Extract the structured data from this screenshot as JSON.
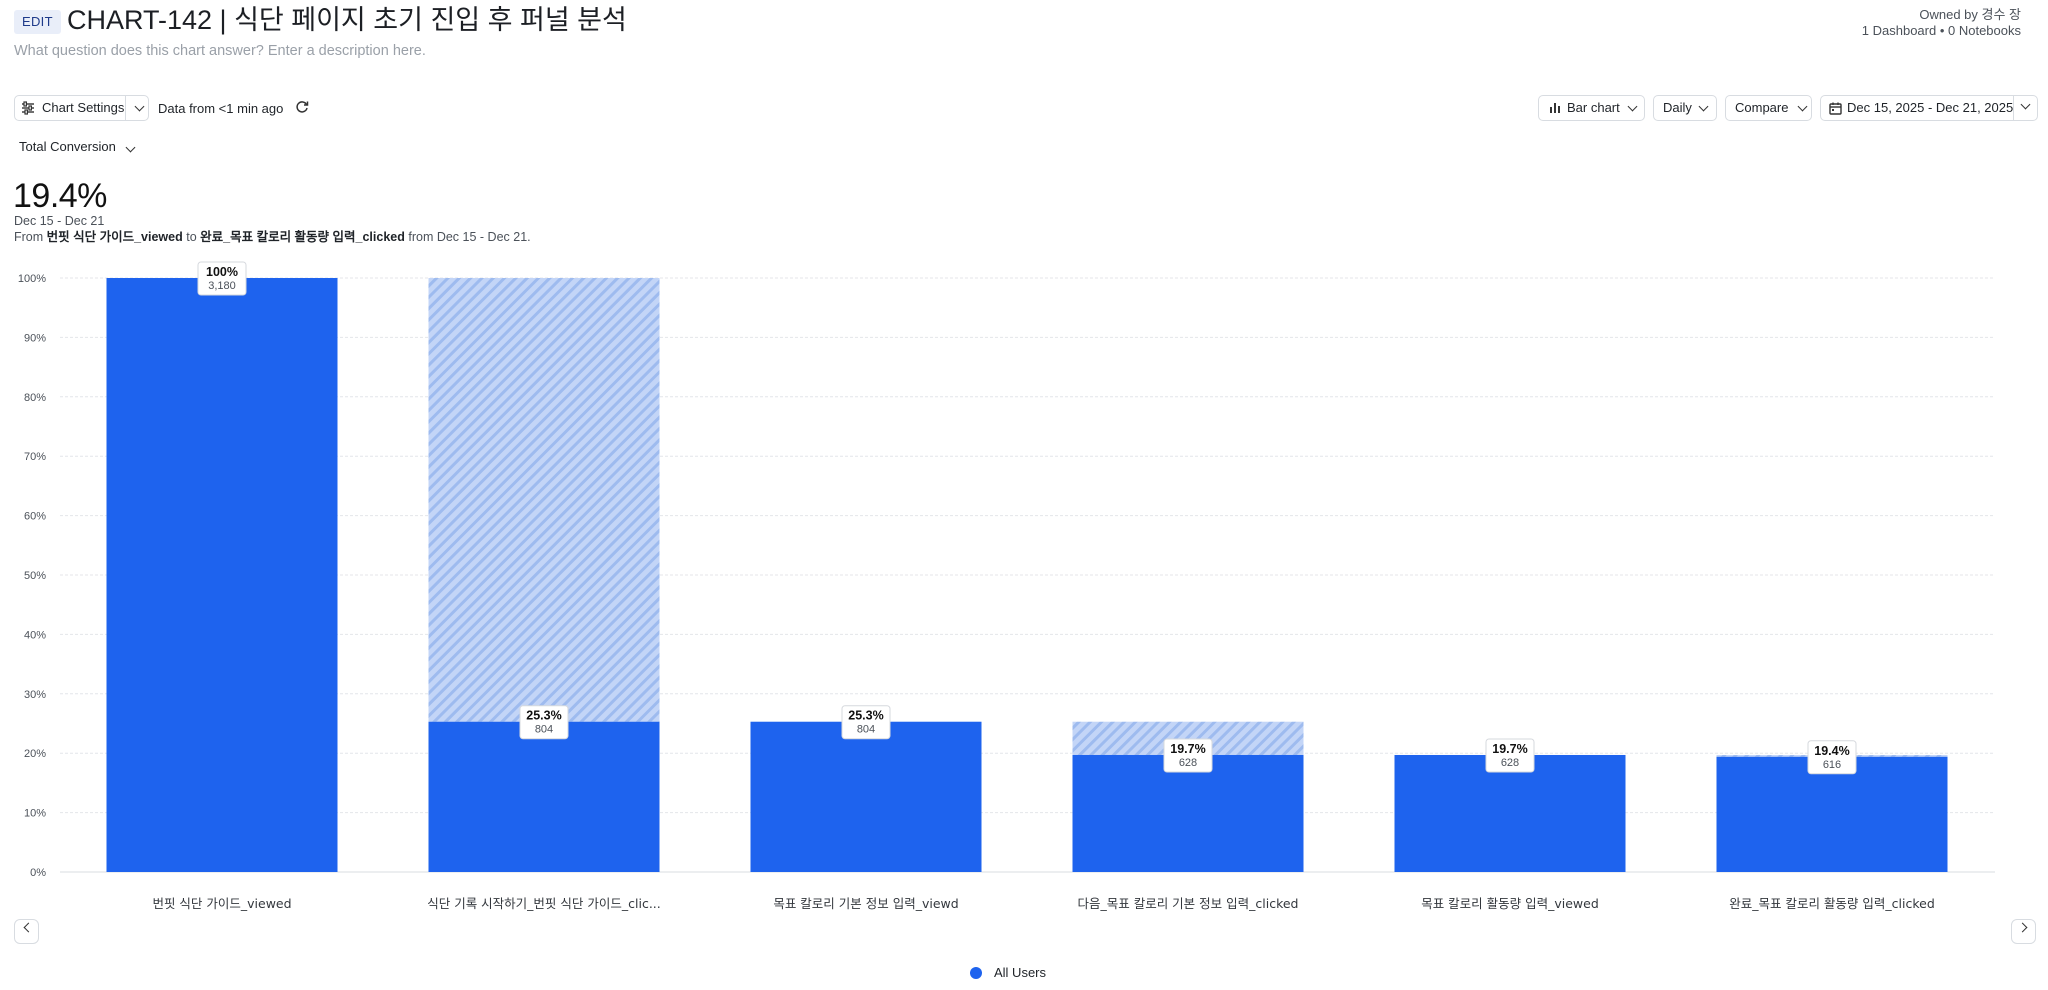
{
  "header": {
    "edit_badge": "EDIT",
    "title": "CHART-142 | 식단 페이지 초기 진입 후 퍼널 분석",
    "description_placeholder": "What question does this chart answer? Enter a description here.",
    "owner": "Owned by 경수 장",
    "counts": "1 Dashboard • 0 Notebooks"
  },
  "toolbar": {
    "chart_settings": "Chart Settings",
    "data_freshness": "Data from <1 min ago",
    "chart_type": "Bar chart",
    "interval": "Daily",
    "compare": "Compare",
    "date_range": "Dec 15, 2025 - Dec 21, 2025"
  },
  "metric": {
    "selector": "Total Conversion",
    "value": "19.4%",
    "date_range": "Dec 15 - Dec 21",
    "from_prefix": "From",
    "from_event": "번핏 식단 가이드_viewed",
    "to_word": "to",
    "to_event": "완료_목표 칼로리 활동량 입력_clicked",
    "from_suffix": "from Dec 15 - Dec 21."
  },
  "legend": {
    "label": "All Users",
    "color": "#1e63ee"
  },
  "chart_data": {
    "type": "bar",
    "categories": [
      "번핏 식단 가이드_viewed",
      "식단 기록 시작하기_번핏 식단 가이드_clic...",
      "목표 칼로리 기본 정보 입력_viewd",
      "다음_목표 칼로리 기본 정보 입력_clicked",
      "목표 칼로리 활동량 입력_viewed",
      "완료_목표 칼로리 활동량 입력_clicked"
    ],
    "series": [
      {
        "name": "All Users",
        "values": [
          100,
          25.3,
          25.3,
          19.7,
          19.7,
          19.4
        ],
        "counts": [
          3180,
          804,
          804,
          628,
          628,
          616
        ],
        "pct_labels": [
          "100%",
          "25.3%",
          "25.3%",
          "19.7%",
          "19.7%",
          "19.4%"
        ],
        "count_labels": [
          "3,180",
          "804",
          "804",
          "628",
          "628",
          "616"
        ],
        "dropoff_to": [
          100,
          100,
          25.3,
          25.3,
          19.7,
          19.7
        ]
      }
    ],
    "yticks": [
      "0%",
      "10%",
      "20%",
      "30%",
      "40%",
      "50%",
      "60%",
      "70%",
      "80%",
      "90%",
      "100%"
    ],
    "ylim": [
      0,
      100
    ],
    "grid": true,
    "colors": {
      "bar": "#1e63ee",
      "dropoff": "#c3d5f7",
      "dropoff_stripe": "#9ebbef"
    }
  }
}
